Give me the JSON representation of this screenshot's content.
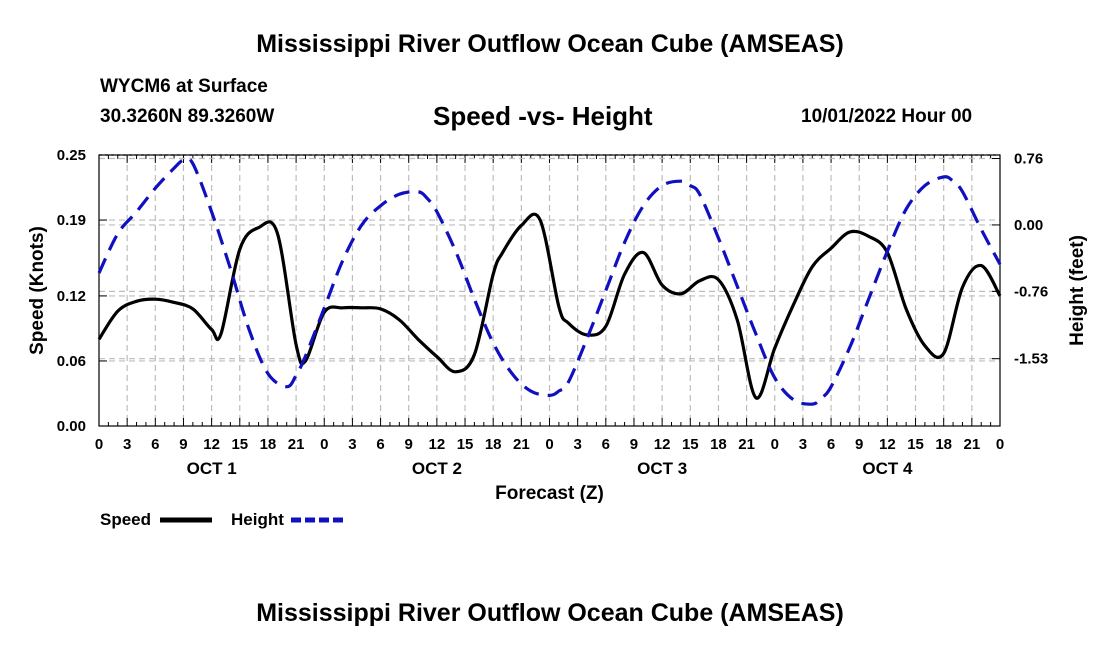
{
  "title": "Mississippi River Outflow Ocean Cube (AMSEAS)",
  "station": "WYCM6 at Surface",
  "coords": "30.3260N  89.3260W",
  "subtitle": "Speed -vs- Height",
  "datetime": "10/01/2022 Hour 00",
  "chart_data": {
    "type": "line",
    "xlabel": "Forecast (Z)",
    "ylabel_left": "Speed (Knots)",
    "ylabel_right": "Height (feet)",
    "x_range_hours": [
      0,
      96
    ],
    "x_tick_labels": [
      "0",
      "3",
      "6",
      "9",
      "12",
      "15",
      "18",
      "21",
      "0",
      "3",
      "6",
      "9",
      "12",
      "15",
      "18",
      "21",
      "0",
      "3",
      "6",
      "9",
      "12",
      "15",
      "18",
      "21",
      "0",
      "3",
      "6",
      "9",
      "12",
      "15",
      "18",
      "21",
      "0"
    ],
    "day_labels": [
      "OCT 1",
      "OCT 2",
      "OCT 3",
      "OCT 4"
    ],
    "left_axis": {
      "ylim": [
        0,
        0.25
      ],
      "tick_values": [
        0.0,
        0.06,
        0.12,
        0.19,
        0.25
      ],
      "tick_labels": [
        "0.00",
        "0.06",
        "0.12",
        "0.19",
        "0.25"
      ]
    },
    "right_axis": {
      "ylim": [
        -2.3,
        0.8
      ],
      "tick_values": [
        -1.53,
        -0.76,
        0.0,
        0.76
      ],
      "tick_labels": [
        "-1.53",
        "-0.76",
        "0.00",
        "0.76"
      ]
    },
    "grid": true,
    "legend_position": "bottom-left",
    "series": [
      {
        "name": "Speed",
        "axis": "left",
        "color": "#000000",
        "dash": "solid",
        "x": [
          0,
          2,
          4,
          6,
          8,
          10,
          12,
          13,
          15,
          17,
          19,
          21,
          22,
          24,
          26,
          28,
          30,
          32,
          34,
          36,
          38,
          40,
          42,
          43,
          45,
          47,
          49,
          50,
          52,
          54,
          56,
          58,
          60,
          62,
          64,
          66,
          68,
          70,
          72,
          74,
          76,
          78,
          80,
          82,
          84,
          86,
          88,
          90,
          92,
          94,
          96
        ],
        "values": [
          0.08,
          0.106,
          0.115,
          0.117,
          0.114,
          0.108,
          0.089,
          0.085,
          0.163,
          0.183,
          0.178,
          0.075,
          0.06,
          0.105,
          0.109,
          0.109,
          0.108,
          0.098,
          0.08,
          0.064,
          0.05,
          0.066,
          0.14,
          0.16,
          0.185,
          0.19,
          0.11,
          0.095,
          0.084,
          0.092,
          0.14,
          0.16,
          0.13,
          0.122,
          0.134,
          0.135,
          0.098,
          0.026,
          0.072,
          0.112,
          0.147,
          0.164,
          0.179,
          0.175,
          0.16,
          0.108,
          0.074,
          0.067,
          0.128,
          0.148,
          0.12
        ]
      },
      {
        "name": "Height",
        "axis": "right",
        "color": "#1010c0",
        "dash": "dashed",
        "x": [
          0,
          2,
          4,
          6,
          8,
          9,
          10,
          12,
          14,
          16,
          18,
          20,
          21,
          22,
          24,
          26,
          28,
          30,
          32,
          34,
          35,
          36,
          38,
          40,
          42,
          44,
          46,
          48,
          49,
          50,
          52,
          54,
          56,
          58,
          60,
          62,
          63,
          64,
          66,
          68,
          70,
          72,
          74,
          76,
          77,
          78,
          80,
          82,
          84,
          86,
          88,
          90,
          91,
          92,
          94,
          96
        ],
        "values": [
          -0.55,
          -0.1,
          0.15,
          0.42,
          0.65,
          0.74,
          0.7,
          0.15,
          -0.5,
          -1.2,
          -1.7,
          -1.85,
          -1.72,
          -1.5,
          -0.95,
          -0.4,
          0.0,
          0.22,
          0.35,
          0.38,
          0.3,
          0.15,
          -0.3,
          -0.85,
          -1.35,
          -1.7,
          -1.9,
          -1.95,
          -1.9,
          -1.8,
          -1.3,
          -0.75,
          -0.2,
          0.22,
          0.45,
          0.5,
          0.45,
          0.35,
          -0.15,
          -0.7,
          -1.25,
          -1.75,
          -2.0,
          -2.05,
          -1.98,
          -1.85,
          -1.4,
          -0.85,
          -0.3,
          0.18,
          0.45,
          0.55,
          0.5,
          0.38,
          -0.05,
          -0.45
        ]
      }
    ]
  }
}
